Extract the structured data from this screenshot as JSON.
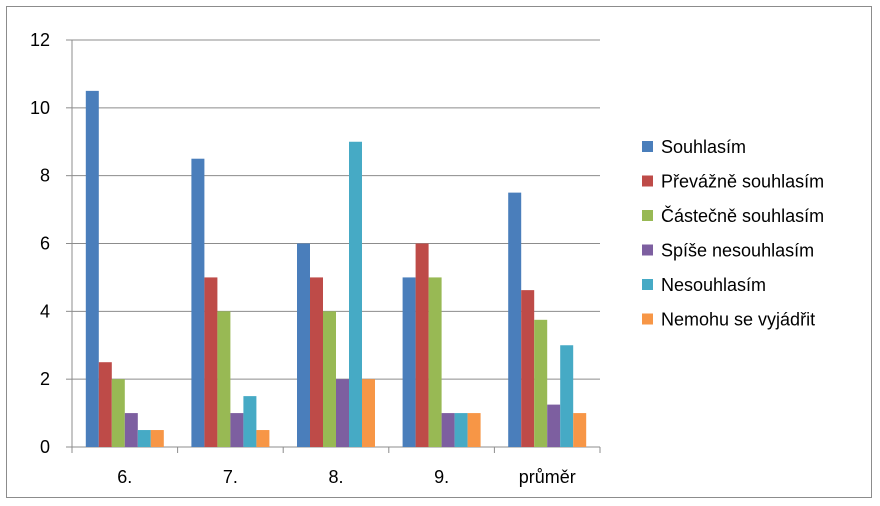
{
  "chart_data": {
    "type": "bar",
    "categories": [
      "6.",
      "7.",
      "8.",
      "9.",
      "průměr"
    ],
    "series": [
      {
        "name": "Souhlasím",
        "color": "#4a7ebb",
        "values": [
          10.5,
          8.5,
          6,
          5,
          7.5
        ]
      },
      {
        "name": "Převážně souhlasím",
        "color": "#be4b48",
        "values": [
          2.5,
          5,
          5,
          6,
          4.625
        ]
      },
      {
        "name": "Částečně souhlasím",
        "color": "#98b954",
        "values": [
          2,
          4,
          4,
          5,
          3.75
        ]
      },
      {
        "name": "Spíše nesouhlasím",
        "color": "#7d5fa0",
        "values": [
          1,
          1,
          2,
          1,
          1.25
        ]
      },
      {
        "name": "Nesouhlasím",
        "color": "#46aac5",
        "values": [
          0.5,
          1.5,
          9,
          1,
          3
        ]
      },
      {
        "name": "Nemohu se vyjádřit",
        "color": "#f79646",
        "values": [
          0.5,
          0.5,
          2,
          1,
          1
        ]
      }
    ],
    "yticks": [
      "0",
      "2",
      "4",
      "6",
      "8",
      "10",
      "12"
    ],
    "ylim": [
      0,
      12
    ],
    "title": "",
    "xlabel": "",
    "ylabel": "",
    "grid": true,
    "legend_position": "right"
  }
}
